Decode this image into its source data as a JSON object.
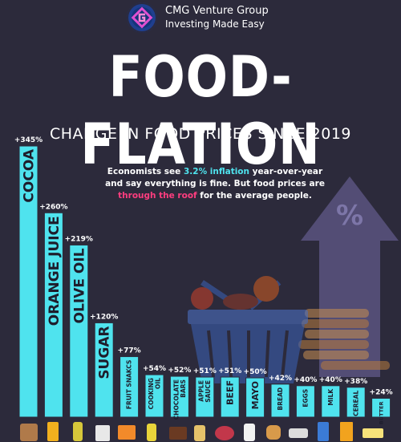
{
  "header": {
    "brand": "CMG Venture Group",
    "tagline": "Investing Made Easy",
    "title": "FOOD-FLATION",
    "subtitle": "CHANGE IN FOOD PRICES SINCE 2019"
  },
  "blurb": {
    "part1": "Economists see ",
    "rate": "3.2% inflation",
    "part2": " year-over-year and say everything is fine. But food prices are ",
    "emphasis": "through the roof",
    "part3": " for the average people."
  },
  "decor": {
    "arrow_symbol": "%"
  },
  "colors": {
    "background": "#2c2a3b",
    "bar": "#4fe3ee",
    "bar_text": "#1e1d2c",
    "accent_pink": "#ff3d7f",
    "arrow": "#5a5480"
  },
  "chart_data": {
    "type": "bar",
    "categories": [
      "COCOA",
      "ORANGE JUICE",
      "OLIVE OIL",
      "SUGAR",
      "FRUIT SNAKCS",
      "COOKING OIL",
      "CHOCOLATE BARS",
      "APPLE SAUCE",
      "BEEF",
      "MAYO",
      "BREAD",
      "EGGS",
      "MILK",
      "CEREAL",
      "BUTTER"
    ],
    "values": [
      345,
      260,
      219,
      120,
      77,
      54,
      52,
      51,
      51,
      50,
      42,
      40,
      40,
      38,
      24
    ],
    "data_labels": [
      "+345%",
      "+260%",
      "+219%",
      "+120%",
      "+77%",
      "+54%",
      "+52%",
      "+51%",
      "+51%",
      "+50%",
      "+42%",
      "+40%",
      "+40%",
      "+38%",
      "+24%"
    ],
    "bar_labels": [
      [
        "COCOA"
      ],
      [
        "ORANGE JUICE"
      ],
      [
        "OLIVE OIL"
      ],
      [
        "SUGAR"
      ],
      [
        "FRUIT SNAKCS"
      ],
      [
        "COOKING",
        "OIL"
      ],
      [
        "CHOCOLATE",
        "BARS"
      ],
      [
        "APPLE",
        "SAUCE"
      ],
      [
        "BEEF"
      ],
      [
        "MAYO"
      ],
      [
        "BREAD"
      ],
      [
        "EGGS"
      ],
      [
        "MILK"
      ],
      [
        "CEREAL"
      ],
      [
        "BUTTER"
      ]
    ],
    "bar_label_size": [
      "xl",
      "xl",
      "xl",
      "xl",
      "sm",
      "sm",
      "sm",
      "sm",
      "md",
      "md",
      "sm",
      "sm",
      "sm",
      "sm",
      "xs"
    ],
    "ylim": [
      0,
      345
    ],
    "grid": false,
    "legend": "none"
  }
}
